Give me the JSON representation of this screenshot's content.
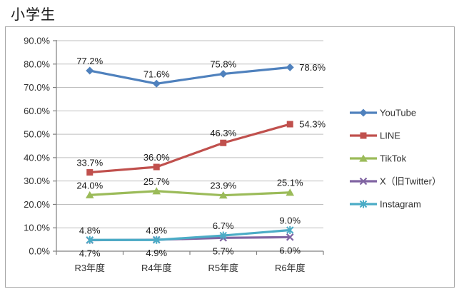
{
  "title": "小学生",
  "chart_data": {
    "type": "line",
    "title": "小学生",
    "categories": [
      "R3年度",
      "R4年度",
      "R5年度",
      "R6年度"
    ],
    "series": [
      {
        "name": "YouTube",
        "color": "#4F81BD",
        "marker": "diamond",
        "values": [
          77.2,
          71.6,
          75.8,
          78.6
        ],
        "label_position": "above",
        "last_label": "right"
      },
      {
        "name": "LINE",
        "color": "#C0504D",
        "marker": "square",
        "values": [
          33.7,
          36.0,
          46.3,
          54.3
        ],
        "label_position": "above",
        "last_label": "right"
      },
      {
        "name": "TikTok",
        "color": "#9BBB59",
        "marker": "triangle",
        "values": [
          24.0,
          25.7,
          23.9,
          25.1
        ],
        "label_position": "above",
        "last_label": "above"
      },
      {
        "name": "X（旧Twitter）",
        "color": "#8064A2",
        "marker": "x",
        "values": [
          4.7,
          4.9,
          5.7,
          6.0
        ],
        "label_position": "below",
        "last_label": "below"
      },
      {
        "name": "Instagram",
        "color": "#4BACC6",
        "marker": "asterisk",
        "values": [
          4.8,
          4.8,
          6.7,
          9.0
        ],
        "label_position": "above",
        "last_label": "above"
      }
    ],
    "y_tick_labels": [
      "0.0%",
      "10.0%",
      "20.0%",
      "30.0%",
      "40.0%",
      "50.0%",
      "60.0%",
      "70.0%",
      "80.0%",
      "90.0%"
    ],
    "ylim": [
      0,
      90
    ],
    "y_tick_step": 10,
    "grid": true,
    "legend_position": "right",
    "colors": {
      "axis": "#808080",
      "grid": "#bfbfbf",
      "text": "#303030"
    }
  }
}
